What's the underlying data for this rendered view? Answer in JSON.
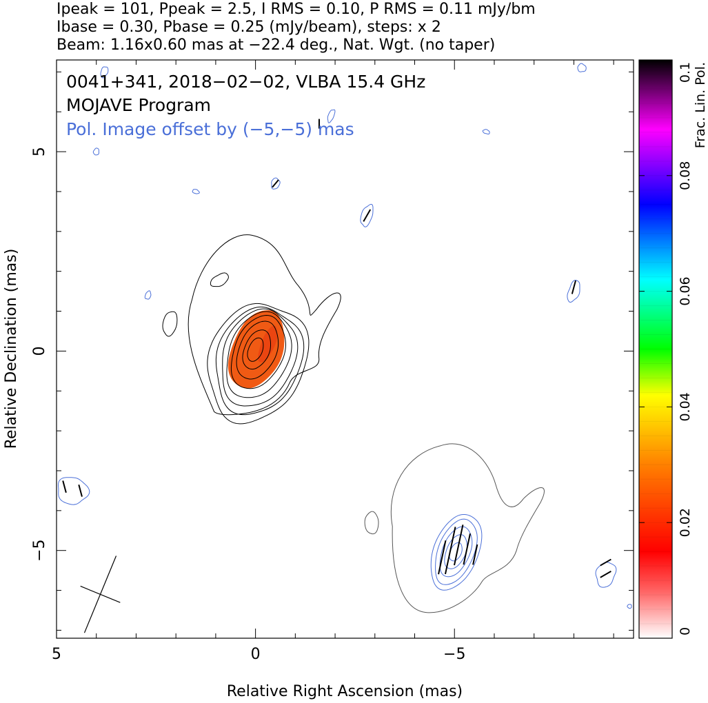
{
  "header": {
    "line1": "Ipeak = 101, Ppeak = 2.5, I RMS = 0.10, P RMS = 0.11 mJy/bm",
    "line2": "Ibase = 0.30, Pbase = 0.25 (mJy/beam), steps: x 2",
    "line3": "Beam: 1.16x0.60 mas at −22.4 deg., Nat. Wgt. (no taper)"
  },
  "annotations": {
    "source": "0041+341, 2018−02−02, VLBA 15.4 GHz",
    "program": "MOJAVE Program",
    "offset_note": "Pol. Image offset by (−5,−5) mas"
  },
  "colors": {
    "total_intensity_contour": "#000000",
    "polarization_contour": "#4a6fd8",
    "offset_note_text": "#4a6fd8",
    "fractional_pol_fill": "#f05a14",
    "evpa_ticks": "#000000"
  },
  "colorbar": {
    "label": "Frac. Lin. Pol.",
    "min": 0,
    "max": 0.1,
    "ticks": [
      "0",
      "0.02",
      "0.04",
      "0.06",
      "0.08",
      "0.1"
    ],
    "colormap": [
      "#ffffff",
      "#ff0000",
      "#ff8000",
      "#ffff00",
      "#00ff00",
      "#00ffff",
      "#0000ff",
      "#ff00ff",
      "#000000"
    ]
  },
  "chart_data": {
    "type": "contour",
    "xlabel": "Relative Right Ascension (mas)",
    "ylabel": "Relative Declination (mas)",
    "x_ticks": [
      "5",
      "0",
      "−5"
    ],
    "y_ticks": [
      "5",
      "0",
      "−5"
    ],
    "xlim": [
      5,
      -9.5
    ],
    "ylim": [
      -7.2,
      7.3
    ],
    "total_intensity": {
      "peak": 101,
      "base": 0.3,
      "rms": 0.1,
      "unit": "mJy/beam",
      "contour_factor": 2,
      "core_position": [
        0,
        0
      ]
    },
    "polarization": {
      "peak": 2.5,
      "base": 0.25,
      "rms": 0.11,
      "unit": "mJy/beam",
      "offset": [
        -5,
        -5
      ],
      "fractional_pol_core": 0.025
    },
    "beam": {
      "major_mas": 1.16,
      "minor_mas": 0.6,
      "pa_deg": -22.4
    }
  }
}
